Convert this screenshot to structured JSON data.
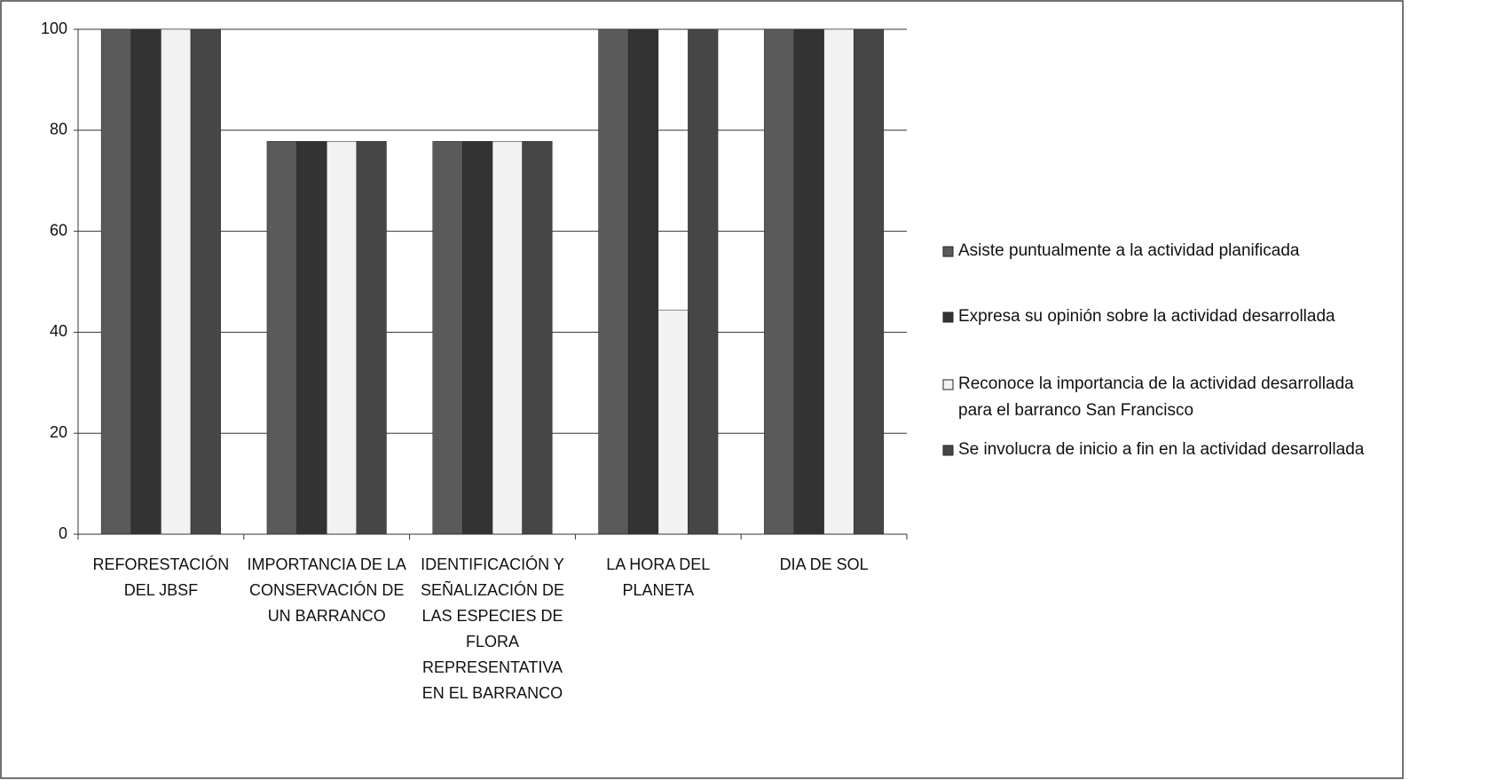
{
  "chart_data": {
    "type": "bar",
    "categories": [
      "REFORESTACIÓN DEL JBSF",
      "IMPORTANCIA DE LA CONSERVACIÓN DE UN BARRANCO",
      "IDENTIFICACIÓN Y SEÑALIZACIÓN DE LAS ESPECIES DE FLORA REPRESENTATIVA EN EL BARRANCO",
      "LA HORA DEL PLANETA",
      "DIA DE SOL"
    ],
    "series": [
      {
        "name": "Asiste puntualmente a la actividad planificada",
        "color": "#5a5a5a",
        "values": [
          100,
          77.8,
          77.8,
          100,
          100
        ]
      },
      {
        "name": "Expresa su opinión sobre la actividad desarrollada",
        "color": "#333333",
        "values": [
          100,
          77.8,
          77.8,
          100,
          100
        ]
      },
      {
        "name": "Reconoce la importancia de la actividad desarrollada para el barranco San Francisco",
        "color": "#f2f2f2",
        "values": [
          100,
          77.8,
          77.8,
          44.4,
          100
        ]
      },
      {
        "name": "Se involucra de inicio a fin en la actividad desarrollada",
        "color": "#464646",
        "values": [
          100,
          77.8,
          77.8,
          100,
          100
        ]
      }
    ],
    "ylim": [
      0,
      100
    ],
    "yticks": [
      0,
      20,
      40,
      60,
      80,
      100
    ],
    "grid": true,
    "legend": "right"
  }
}
